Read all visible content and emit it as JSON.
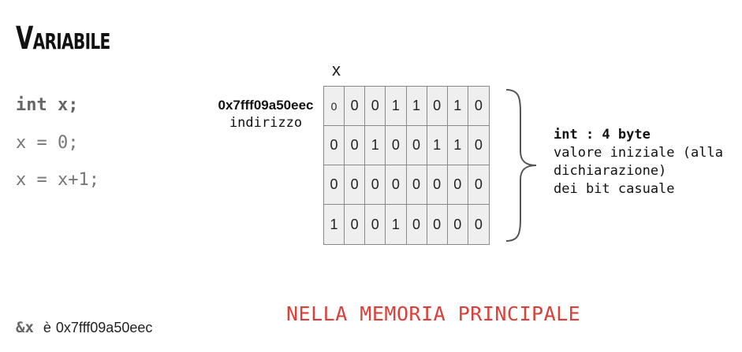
{
  "title": "Variabile",
  "code": {
    "line1": "int x;",
    "line2": "x = 0;",
    "line3": "x = x+1;"
  },
  "memory_cell": {
    "variable": "x",
    "address": "0x7fff09a50eec",
    "address_label": "indirizzo",
    "bits": [
      [
        "0",
        "0",
        "0",
        "1",
        "1",
        "0",
        "1",
        "0"
      ],
      [
        "0",
        "0",
        "1",
        "0",
        "0",
        "1",
        "1",
        "0"
      ],
      [
        "0",
        "0",
        "0",
        "0",
        "0",
        "0",
        "0",
        "0"
      ],
      [
        "1",
        "0",
        "0",
        "1",
        "0",
        "0",
        "0",
        "0"
      ]
    ]
  },
  "description": {
    "type_line": "int : 4 byte",
    "line2": "valore iniziale (alla",
    "line3": "dichiarazione)",
    "line4": "dei bit casuale"
  },
  "memory_caption": "NELLA MEMORIA PRINCIPALE",
  "reference": {
    "expr": "&x",
    "verb": "è",
    "value": "0x7fff09a50eec"
  }
}
